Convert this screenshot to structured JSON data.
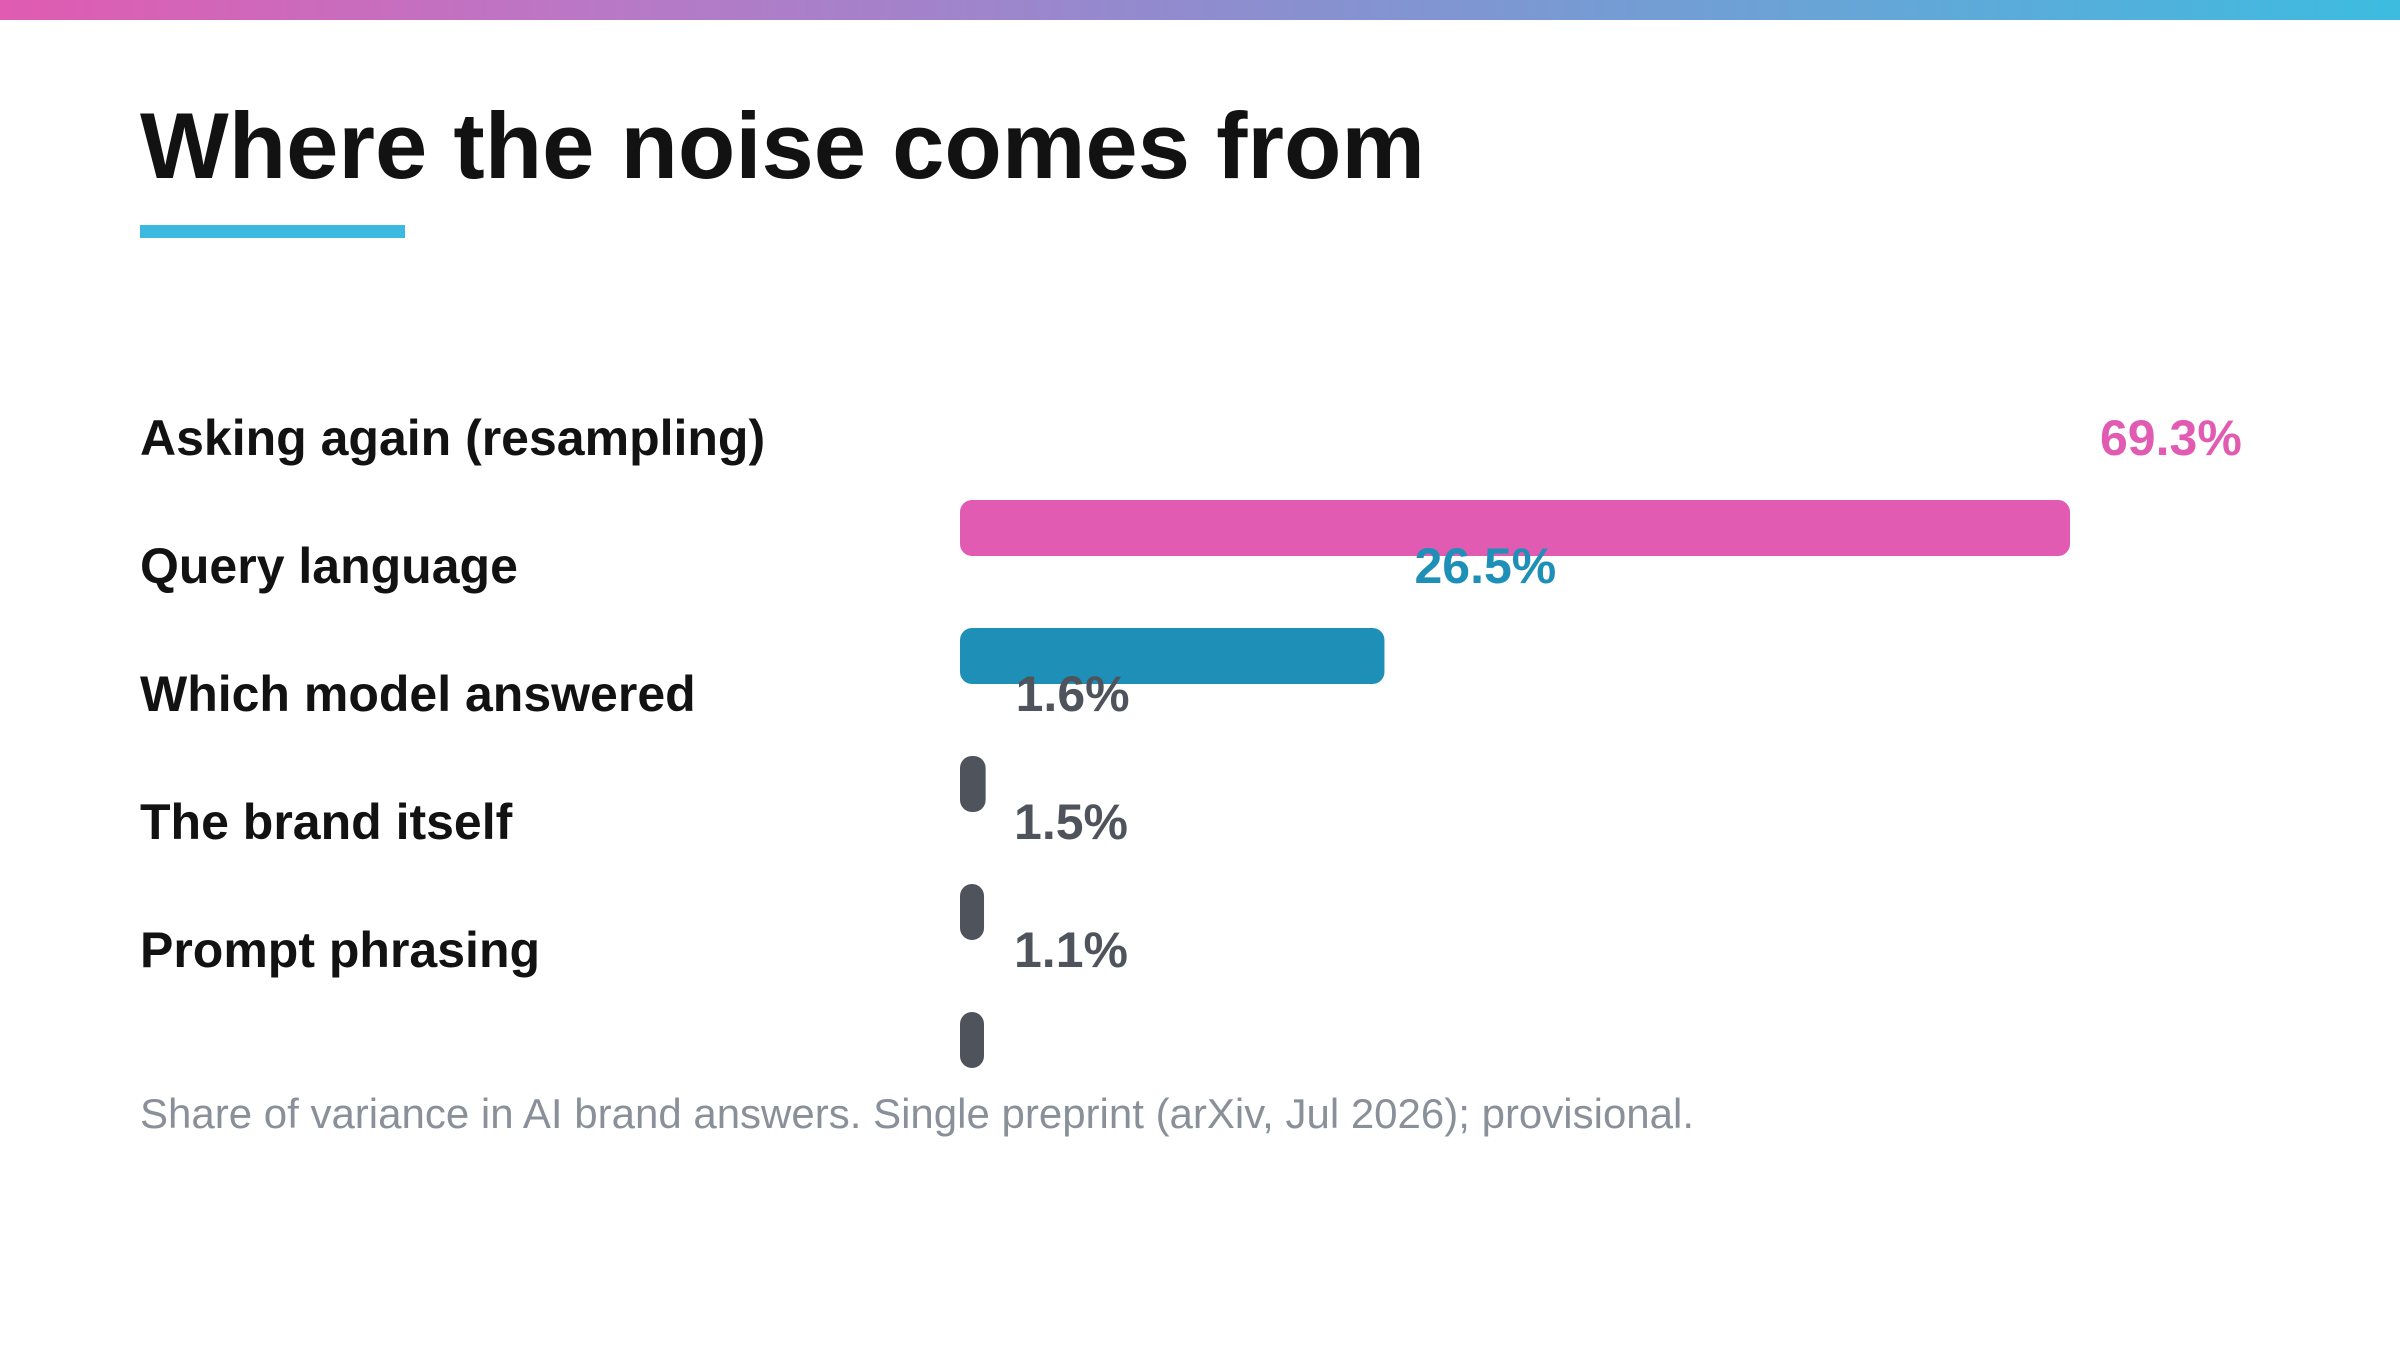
{
  "slide": {
    "title": "Where the noise comes from",
    "footnote": "Share of variance in AI brand answers. Single preprint (arXiv, Jul 2026); provisional."
  },
  "colors": {
    "stripe_gradient": [
      "#e05bb1",
      "#3dbce0"
    ],
    "underline": "#3bb9e0",
    "title_text": "#121212",
    "footnote_text": "#8a9099"
  },
  "chart_data": {
    "type": "bar",
    "orientation": "horizontal",
    "title": "",
    "xlabel": "",
    "ylabel": "",
    "xlim": [
      0,
      69.3
    ],
    "grid": false,
    "legend": "none",
    "categories": [
      "Asking again (resampling)",
      "Query language",
      "Which model answered",
      "The brand itself",
      "Prompt phrasing"
    ],
    "values": [
      69.3,
      26.5,
      1.6,
      1.5,
      1.1
    ],
    "value_labels": [
      "69.3%",
      "26.5%",
      "1.6%",
      "1.5%",
      "1.1%"
    ],
    "bar_colors": [
      "#e05bb1",
      "#1e90b8",
      "#4f545c",
      "#4f545c",
      "#4f545c"
    ],
    "label_colors": [
      "#e05bb1",
      "#1e90b8",
      "#4f545c",
      "#4f545c",
      "#4f545c"
    ]
  }
}
